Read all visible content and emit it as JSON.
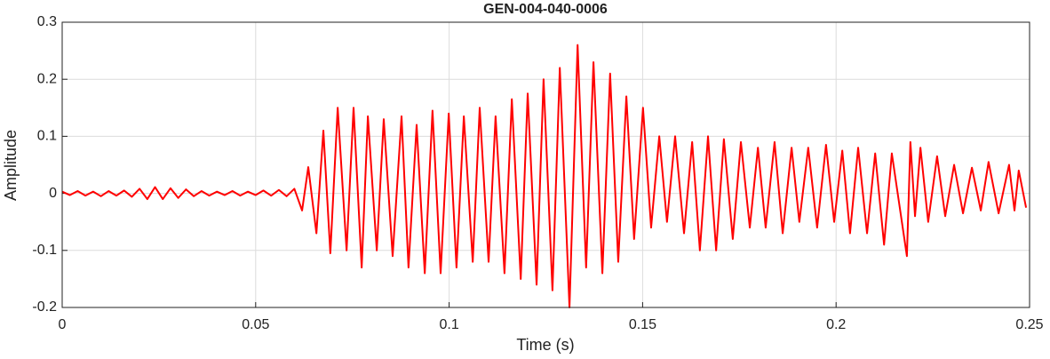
{
  "chart_data": {
    "type": "line",
    "title": "GEN-004-040-0006",
    "xlabel": "Time (s)",
    "ylabel": "Amplitude",
    "xlim": [
      0,
      0.25
    ],
    "xticks": [
      0,
      0.05,
      0.1,
      0.15,
      0.2,
      0.25
    ],
    "ylim": [
      -0.2,
      0.3
    ],
    "yticks": [
      -0.2,
      -0.1,
      0,
      0.1,
      0.2,
      0.3
    ],
    "grid": true,
    "x": [
      0,
      0.002,
      0.004,
      0.006,
      0.008,
      0.01,
      0.012,
      0.014,
      0.016,
      0.018,
      0.02,
      0.022,
      0.024,
      0.026,
      0.028,
      0.03,
      0.032,
      0.034,
      0.036,
      0.038,
      0.04,
      0.042,
      0.044,
      0.046,
      0.048,
      0.05,
      0.052,
      0.054,
      0.056,
      0.058,
      0.06,
      0.062,
      0.0636,
      0.0657,
      0.0675,
      0.0693,
      0.0712,
      0.0735,
      0.0753,
      0.0774,
      0.079,
      0.0813,
      0.0831,
      0.0854,
      0.0877,
      0.0895,
      0.0916,
      0.0937,
      0.0957,
      0.0978,
      0.0999,
      0.1019,
      0.1038,
      0.1061,
      0.1079,
      0.1102,
      0.112,
      0.1143,
      0.1162,
      0.1185,
      0.1203,
      0.1226,
      0.1244,
      0.1267,
      0.1286,
      0.1311,
      0.1332,
      0.1354,
      0.1373,
      0.1396,
      0.1416,
      0.1437,
      0.1458,
      0.1478,
      0.1501,
      0.1522,
      0.1543,
      0.1563,
      0.1584,
      0.1607,
      0.1628,
      0.1648,
      0.1669,
      0.169,
      0.171,
      0.1733,
      0.1754,
      0.1777,
      0.1798,
      0.1818,
      0.1841,
      0.1862,
      0.1885,
      0.1905,
      0.1928,
      0.1951,
      0.1974,
      0.1995,
      0.2016,
      0.2036,
      0.2057,
      0.208,
      0.2101,
      0.2124,
      0.2144,
      0.2183,
      0.2192,
      0.2204,
      0.2218,
      0.2238,
      0.2261,
      0.2282,
      0.2305,
      0.2328,
      0.2351,
      0.2374,
      0.2394,
      0.242,
      0.2447,
      0.2461,
      0.2472,
      0.2491
    ],
    "series": [
      {
        "name": "Amplitude",
        "color": "#ff0000",
        "values": [
          0.003,
          -0.003,
          0.004,
          -0.004,
          0.003,
          -0.005,
          0.004,
          -0.004,
          0.005,
          -0.006,
          0.008,
          -0.01,
          0.011,
          -0.01,
          0.009,
          -0.008,
          0.007,
          -0.005,
          0.004,
          -0.004,
          0.003,
          -0.003,
          0.004,
          -0.004,
          0.003,
          -0.003,
          0.005,
          -0.004,
          0.006,
          -0.005,
          0.008,
          -0.03,
          0.046,
          -0.07,
          0.11,
          -0.105,
          0.15,
          -0.1,
          0.15,
          -0.13,
          0.135,
          -0.1,
          0.13,
          -0.11,
          0.135,
          -0.13,
          0.12,
          -0.14,
          0.145,
          -0.14,
          0.14,
          -0.13,
          0.135,
          -0.12,
          0.15,
          -0.12,
          0.135,
          -0.14,
          0.165,
          -0.15,
          0.175,
          -0.16,
          0.2,
          -0.17,
          0.22,
          -0.2,
          0.26,
          -0.13,
          0.23,
          -0.14,
          0.21,
          -0.12,
          0.17,
          -0.08,
          0.15,
          -0.06,
          0.1,
          -0.05,
          0.1,
          -0.07,
          0.09,
          -0.1,
          0.1,
          -0.1,
          0.095,
          -0.08,
          0.09,
          -0.06,
          0.08,
          -0.06,
          0.09,
          -0.07,
          0.08,
          -0.05,
          0.08,
          -0.06,
          0.085,
          -0.05,
          0.075,
          -0.07,
          0.08,
          -0.07,
          0.07,
          -0.09,
          0.07,
          -0.11,
          0.09,
          -0.04,
          0.08,
          -0.05,
          0.065,
          -0.04,
          0.05,
          -0.035,
          0.045,
          -0.03,
          0.055,
          -0.035,
          0.05,
          -0.03,
          0.04,
          -0.025
        ]
      }
    ]
  }
}
